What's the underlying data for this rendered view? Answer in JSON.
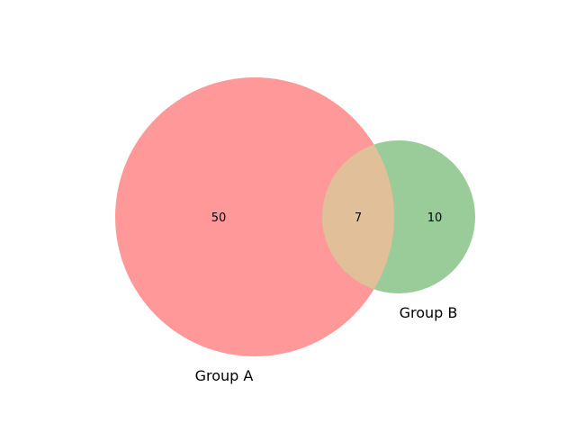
{
  "diagram": {
    "type": "venn2",
    "sets": [
      {
        "label": "Group A",
        "color": "#ff9999"
      },
      {
        "label": "Group B",
        "color": "#99cc99"
      }
    ],
    "regions": {
      "a_only": "50",
      "intersection": "7",
      "b_only": "10"
    },
    "colors": {
      "intersection": "#e0bf99"
    }
  }
}
